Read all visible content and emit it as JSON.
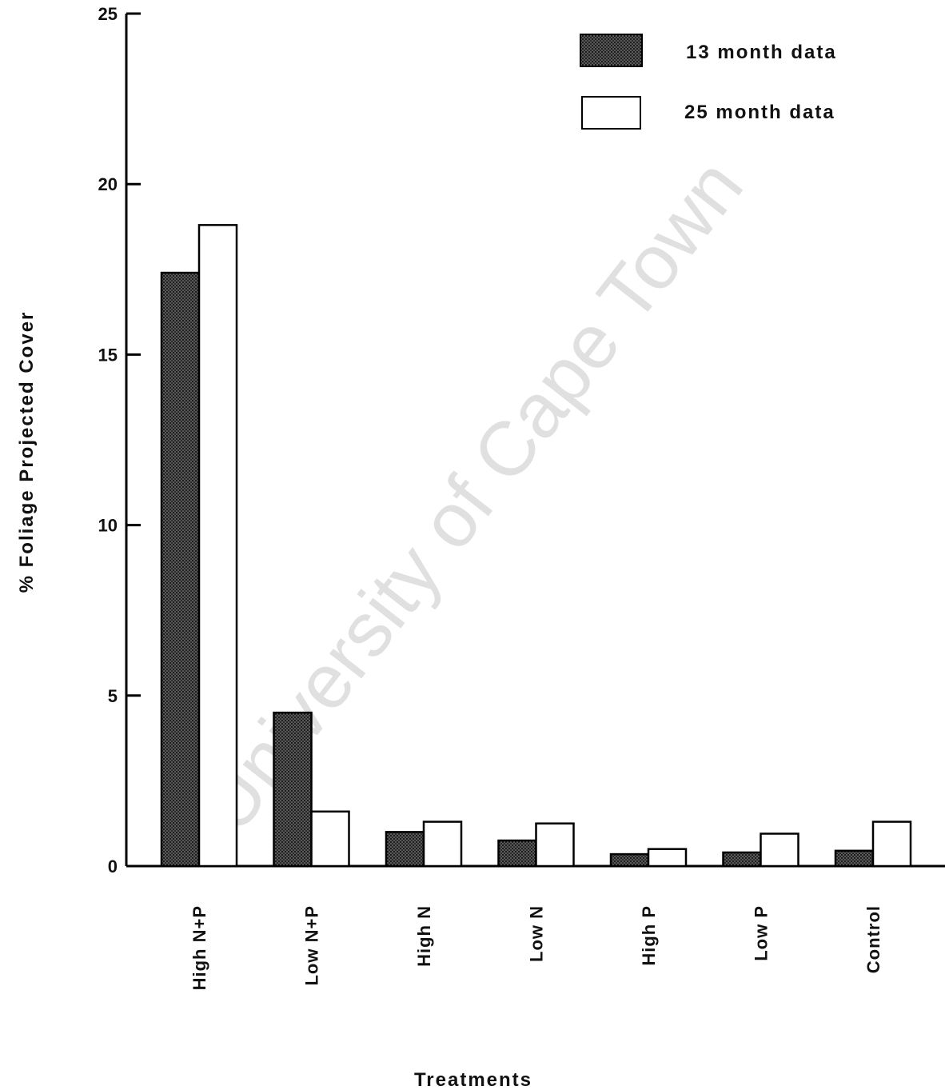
{
  "watermark": "University of Cape Town",
  "chart_data": {
    "type": "bar",
    "title": "",
    "xlabel": "Treatments",
    "ylabel": "% Foliage  Projected Cover",
    "ylim": [
      0,
      25
    ],
    "yticks": [
      0,
      5,
      10,
      15,
      20,
      25
    ],
    "grid": false,
    "legend_position": "top-right",
    "categories": [
      "High N+P",
      "Low N+P",
      "High N",
      "Low N",
      "High P",
      "Low P",
      "Control"
    ],
    "series": [
      {
        "name": "13 month data",
        "fill": "hatched-dark",
        "values": [
          17.4,
          4.5,
          1.0,
          0.75,
          0.35,
          0.4,
          0.45
        ]
      },
      {
        "name": "25 month data",
        "fill": "white",
        "values": [
          18.8,
          1.6,
          1.3,
          1.25,
          0.5,
          0.95,
          1.3
        ]
      }
    ],
    "colors": {
      "axis": "#000000",
      "bar_dark": "#3a3a3a",
      "bar_light": "#ffffff"
    }
  }
}
